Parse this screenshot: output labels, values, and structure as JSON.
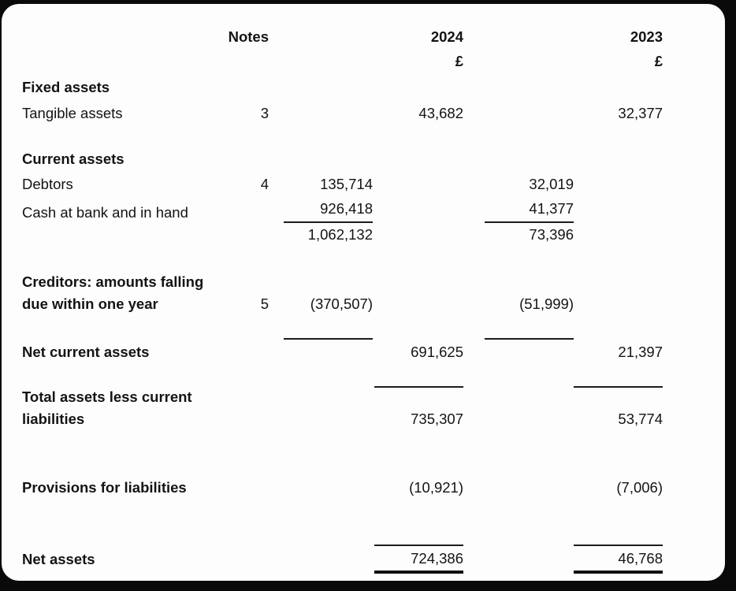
{
  "document": {
    "kind": "balance-sheet",
    "columns": {
      "notes_header": "Notes",
      "year_1": "2024",
      "year_2": "2023",
      "currency_symbol": "£"
    },
    "rows": [
      {
        "id": "col-headers",
        "kind": "header",
        "note": "Notes",
        "m24": "2024",
        "m23": "2023"
      },
      {
        "id": "currency-row",
        "kind": "header",
        "m24": "£",
        "m23": "£"
      },
      {
        "id": "fixed-assets-heading",
        "kind": "section",
        "label": "Fixed assets"
      },
      {
        "id": "tangible-assets",
        "kind": "item",
        "label": "Tangible assets",
        "note": "3",
        "m24": "43,682",
        "m23": "32,377"
      },
      {
        "id": "current-assets-heading",
        "kind": "section",
        "label": "Current assets"
      },
      {
        "id": "debtors",
        "kind": "item",
        "label": "Debtors",
        "note": "4",
        "i24": "135,714",
        "i23": "32,019"
      },
      {
        "id": "cash",
        "kind": "item",
        "label": "Cash at bank and in hand",
        "i24": "926,418",
        "i23": "41,377",
        "rule": "under-inner"
      },
      {
        "id": "current-assets-total",
        "kind": "item",
        "i24": "1,062,132",
        "i23": "73,396"
      },
      {
        "id": "creditors",
        "kind": "bold-item",
        "label": "Creditors: amounts falling due within one year",
        "note": "5",
        "i24": "(370,507)",
        "i23": "(51,999)"
      },
      {
        "id": "net-current-assets",
        "kind": "bold-item",
        "label": "Net current assets",
        "m24": "691,625",
        "m23": "21,397",
        "rule": "above-inner"
      },
      {
        "id": "total-assets-less-cl",
        "kind": "bold-item",
        "label": "Total assets less current liabilities",
        "m24": "735,307",
        "m23": "53,774",
        "rule": "above-main"
      },
      {
        "id": "provisions",
        "kind": "bold-item",
        "label": "Provisions for liabilities",
        "m24": "(10,921)",
        "m23": "(7,006)"
      },
      {
        "id": "net-assets",
        "kind": "bold-item",
        "label": "Net assets",
        "m24": "724,386",
        "m23": "46,768",
        "rule": "final-main"
      }
    ]
  },
  "colors": {
    "text": "#141414",
    "background": "#fdfdfd",
    "frame": "#0a0a0a",
    "rule": "#1c1c1c"
  }
}
